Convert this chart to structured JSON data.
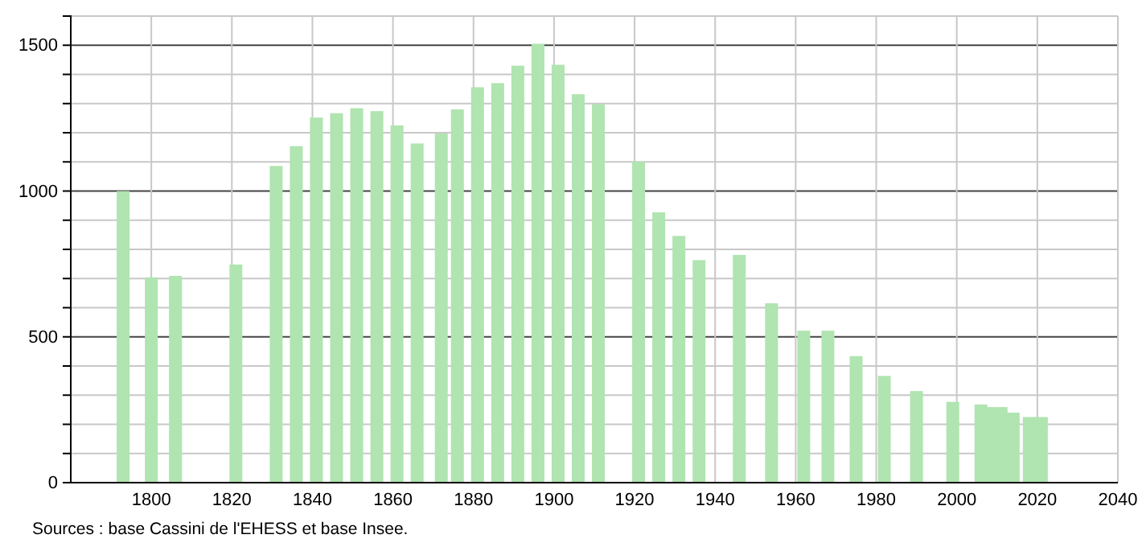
{
  "chart_data": {
    "type": "bar",
    "x": [
      1793,
      1800,
      1806,
      1821,
      1831,
      1836,
      1841,
      1846,
      1851,
      1856,
      1861,
      1866,
      1872,
      1876,
      1881,
      1886,
      1891,
      1896,
      1901,
      1906,
      1911,
      1921,
      1926,
      1931,
      1936,
      1946,
      1954,
      1962,
      1968,
      1975,
      1982,
      1990,
      1999,
      2006,
      2008,
      2011,
      2014,
      2018,
      2021
    ],
    "values": [
      1000,
      704,
      709,
      748,
      1086,
      1154,
      1252,
      1267,
      1284,
      1274,
      1225,
      1163,
      1197,
      1280,
      1356,
      1370,
      1430,
      1505,
      1433,
      1332,
      1298,
      1101,
      927,
      846,
      763,
      781,
      615,
      521,
      521,
      434,
      366,
      314,
      277,
      268,
      259,
      259,
      240,
      225,
      225
    ],
    "color": "#b0e4b0",
    "xlim": [
      1780,
      2040
    ],
    "xticks": [
      1800,
      1820,
      1840,
      1860,
      1880,
      1900,
      1920,
      1940,
      1960,
      1980,
      2000,
      2020,
      2040
    ],
    "ylim": [
      0,
      1600
    ],
    "yticks": [
      0,
      {
        "value": 100,
        "label": null
      },
      {
        "value": 200,
        "label": null
      },
      {
        "value": 300,
        "label": null
      },
      {
        "value": 400,
        "label": null
      },
      500,
      {
        "value": 600,
        "label": null
      },
      {
        "value": 700,
        "label": null
      },
      {
        "value": 800,
        "label": null
      },
      {
        "value": 900,
        "label": null
      },
      1000,
      {
        "value": 1100,
        "label": null
      },
      {
        "value": 1200,
        "label": null
      },
      {
        "value": 1300,
        "label": null
      },
      {
        "value": 1400,
        "label": null
      },
      1500,
      {
        "value": 1600,
        "label": null
      }
    ],
    "grid": true,
    "annotations": [
      "Sources : base Cassini de l'EHESS et base Insee."
    ]
  }
}
